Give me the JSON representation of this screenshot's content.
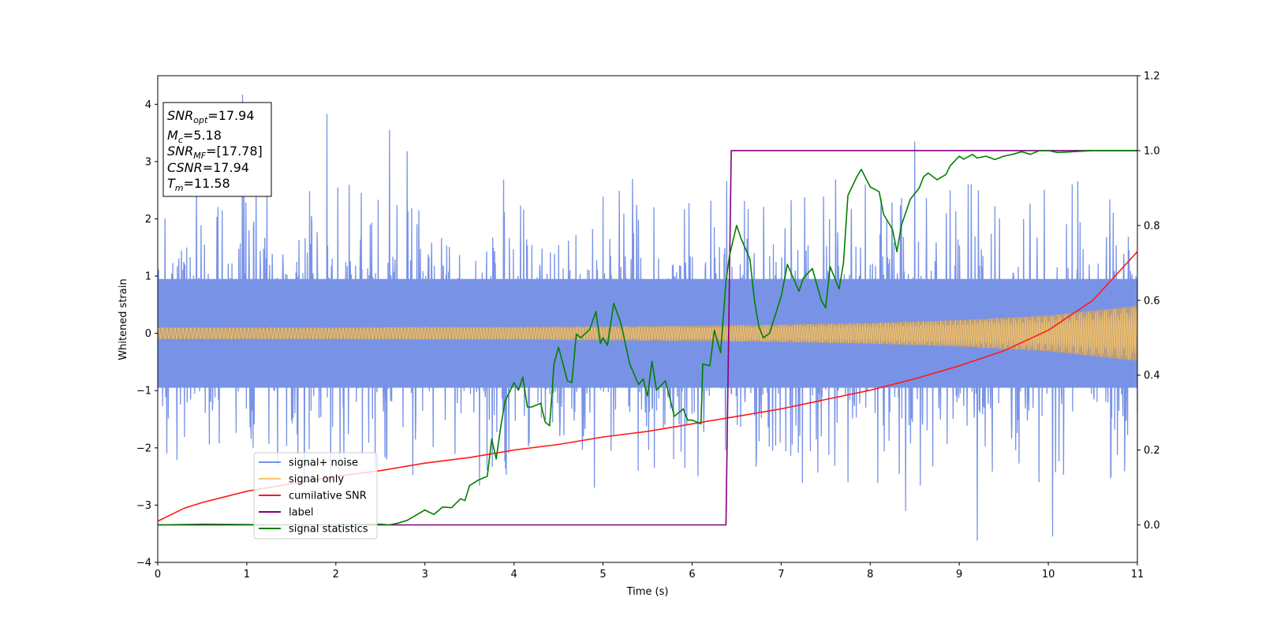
{
  "chart_data": {
    "type": "line",
    "xlabel": "Time (s)",
    "ylabel": "Whitened strain",
    "xlim": [
      0,
      11
    ],
    "ylim": [
      -4,
      4.5
    ],
    "y2lim": [
      -0.1,
      1.2
    ],
    "x_ticks": [
      0,
      1,
      2,
      3,
      4,
      5,
      6,
      7,
      8,
      9,
      10,
      11
    ],
    "y_ticks": [
      -4,
      -3,
      -2,
      -1,
      0,
      1,
      2,
      3,
      4
    ],
    "y2_ticks": [
      0.0,
      0.2,
      0.4,
      0.6,
      0.8,
      1.0,
      1.2
    ],
    "y2_tick_labels": [
      "0.0",
      "0.2",
      "0.4",
      "0.6",
      "0.8",
      "1.0",
      "1.2"
    ],
    "grid": false,
    "legend_position": "bottom-left",
    "colors": {
      "signal_noise": "#7893e6",
      "signal_only": "#f5c46a",
      "signal_overlap": "#bf9e78",
      "cumulative_snr": "#ff1a1a",
      "label": "#800080",
      "signal_statistics": "#008000"
    },
    "series": [
      {
        "name": "signal+ noise",
        "axis": "left",
        "kind": "noise_band",
        "core_range": [
          -0.95,
          0.95
        ],
        "typical_peak_range": [
          -2.5,
          2.6
        ],
        "spikes": [
          {
            "x": 0.95,
            "y": 4.17
          },
          {
            "x": 1.9,
            "y": 3.83
          },
          {
            "x": 2.6,
            "y": 3.55
          },
          {
            "x": 2.8,
            "y": 3.18
          },
          {
            "x": 8.5,
            "y": 3.35
          },
          {
            "x": 9.2,
            "y": -3.62
          },
          {
            "x": 10.05,
            "y": -3.55
          },
          {
            "x": 8.4,
            "y": -3.1
          }
        ]
      },
      {
        "name": "signal only",
        "axis": "left",
        "kind": "chirp_envelope",
        "x": [
          0,
          1,
          2,
          3,
          4,
          5,
          6,
          7,
          8,
          9,
          10,
          11
        ],
        "amplitude": [
          0.1,
          0.1,
          0.1,
          0.11,
          0.11,
          0.12,
          0.13,
          0.15,
          0.18,
          0.23,
          0.31,
          0.48
        ]
      },
      {
        "name": "cumilative SNR",
        "axis": "right",
        "x": [
          0,
          0.3,
          0.5,
          1,
          1.5,
          2,
          2.5,
          3,
          3.5,
          4,
          4.5,
          5,
          5.5,
          6,
          6.5,
          7,
          7.5,
          8,
          8.5,
          9,
          9.5,
          10,
          10.5,
          11
        ],
        "values": [
          0.01,
          0.045,
          0.06,
          0.09,
          0.11,
          0.13,
          0.145,
          0.165,
          0.18,
          0.2,
          0.215,
          0.235,
          0.25,
          0.27,
          0.29,
          0.31,
          0.335,
          0.36,
          0.39,
          0.425,
          0.465,
          0.52,
          0.6,
          0.73
        ]
      },
      {
        "name": "label",
        "axis": "right",
        "x": [
          0,
          6.38,
          6.44,
          11
        ],
        "values": [
          0,
          0,
          1,
          1
        ]
      },
      {
        "name": "signal statistics",
        "axis": "right",
        "x": [
          0,
          0.5,
          1,
          1.5,
          2,
          2.5,
          2.6,
          2.7,
          2.8,
          3,
          3.1,
          3.2,
          3.3,
          3.4,
          3.45,
          3.5,
          3.6,
          3.7,
          3.75,
          3.8,
          3.85,
          3.9,
          4,
          4.05,
          4.1,
          4.15,
          4.2,
          4.3,
          4.35,
          4.4,
          4.45,
          4.5,
          4.6,
          4.65,
          4.7,
          4.75,
          4.85,
          4.92,
          4.97,
          5,
          5.05,
          5.12,
          5.2,
          5.3,
          5.4,
          5.45,
          5.5,
          5.55,
          5.6,
          5.7,
          5.75,
          5.8,
          5.9,
          5.95,
          6,
          6.1,
          6.12,
          6.2,
          6.25,
          6.32,
          6.38,
          6.42,
          6.5,
          6.55,
          6.65,
          6.7,
          6.75,
          6.8,
          6.87,
          6.92,
          7,
          7.07,
          7.2,
          7.25,
          7.35,
          7.45,
          7.5,
          7.55,
          7.65,
          7.7,
          7.75,
          7.85,
          7.9,
          8,
          8.1,
          8.15,
          8.25,
          8.3,
          8.35,
          8.45,
          8.55,
          8.6,
          8.65,
          8.75,
          8.85,
          8.9,
          9,
          9.05,
          9.15,
          9.2,
          9.3,
          9.4,
          9.5,
          9.6,
          9.7,
          9.8,
          9.9,
          10,
          10.1,
          10.2,
          10.5,
          11
        ],
        "values": [
          0,
          0.002,
          0.001,
          0.0,
          0.0,
          0.002,
          0.0,
          0.005,
          0.012,
          0.04,
          0.028,
          0.048,
          0.046,
          0.07,
          0.065,
          0.105,
          0.12,
          0.13,
          0.23,
          0.176,
          0.26,
          0.33,
          0.38,
          0.36,
          0.395,
          0.315,
          0.315,
          0.325,
          0.275,
          0.265,
          0.43,
          0.475,
          0.385,
          0.38,
          0.51,
          0.5,
          0.522,
          0.57,
          0.485,
          0.5,
          0.48,
          0.592,
          0.54,
          0.43,
          0.375,
          0.39,
          0.345,
          0.437,
          0.36,
          0.385,
          0.34,
          0.29,
          0.31,
          0.28,
          0.28,
          0.27,
          0.43,
          0.425,
          0.52,
          0.46,
          0.65,
          0.72,
          0.8,
          0.765,
          0.71,
          0.6,
          0.53,
          0.5,
          0.512,
          0.55,
          0.61,
          0.696,
          0.624,
          0.66,
          0.685,
          0.6,
          0.58,
          0.69,
          0.63,
          0.7,
          0.88,
          0.93,
          0.95,
          0.903,
          0.89,
          0.83,
          0.79,
          0.73,
          0.8,
          0.87,
          0.9,
          0.93,
          0.94,
          0.922,
          0.936,
          0.96,
          0.985,
          0.977,
          0.99,
          0.98,
          0.985,
          0.976,
          0.985,
          0.99,
          0.997,
          0.99,
          1.0,
          1.0,
          0.995,
          0.996,
          1.0,
          1.0
        ]
      }
    ],
    "annotation": {
      "lines": [
        {
          "base": "SNR",
          "sub": "opt",
          "rest": "=17.94"
        },
        {
          "base": "M",
          "sub": "c",
          "rest": "=5.18"
        },
        {
          "base": "SNR",
          "sub": "MF",
          "rest": "=[17.78]"
        },
        {
          "base": "CSNR",
          "sub": "",
          "rest": "=17.94"
        },
        {
          "base": "T",
          "sub": "m",
          "rest": "=11.58"
        }
      ]
    }
  }
}
